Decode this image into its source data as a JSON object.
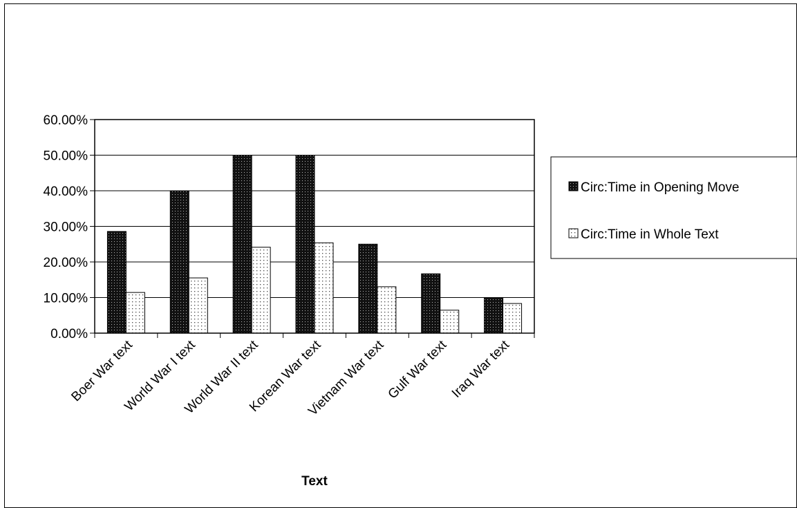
{
  "chart_data": {
    "type": "bar",
    "title": "",
    "xlabel": "Text",
    "ylabel": "",
    "categories": [
      "Boer War text",
      "World War I text",
      "World War II text",
      "Korean War text",
      "Vietnam War text",
      "Gulf War text",
      "Iraq War text"
    ],
    "series": [
      {
        "name": "Circ:Time in Opening Move",
        "values": [
          0.2857,
          0.4,
          0.5,
          0.5,
          0.25,
          0.1667,
          0.1
        ],
        "color": "#1a1a1a",
        "pattern": "dark-dotted"
      },
      {
        "name": "Circ:Time in Whole Text",
        "values": [
          0.1143,
          0.1552,
          0.2414,
          0.2537,
          0.1304,
          0.0645,
          0.0833
        ],
        "color": "#f5f5f5",
        "pattern": "light-dotted"
      }
    ],
    "ylim": [
      0,
      0.6
    ],
    "yticks": [
      0,
      0.1,
      0.2,
      0.3,
      0.4,
      0.5,
      0.6
    ],
    "ytick_labels": [
      "0.00%",
      "10.00%",
      "20.00%",
      "30.00%",
      "40.00%",
      "50.00%",
      "60.00%"
    ],
    "grid": true,
    "legend_position": "right"
  }
}
